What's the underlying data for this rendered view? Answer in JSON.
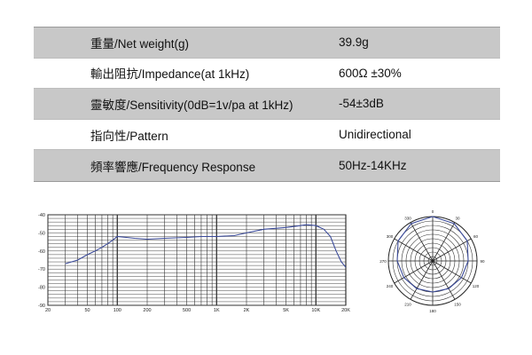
{
  "specs": [
    {
      "label": "重量/Net weight(g)",
      "value": "39.9g"
    },
    {
      "label": "輸出阻抗/Impedance(at 1kHz)",
      "value": "600Ω ±30%"
    },
    {
      "label": "靈敏度/Sensitivity(0dB=1v/pa at 1kHz)",
      "value": "-54±3dB"
    },
    {
      "label": "指向性/Pattern",
      "value": "Unidirectional"
    },
    {
      "label": "頻率響應/Frequency Response",
      "value": "50Hz-14KHz"
    }
  ],
  "chart_data": [
    {
      "type": "line",
      "x_scale": "log",
      "xlim": [
        20,
        20000
      ],
      "ylim": [
        -90,
        -40
      ],
      "x_ticks": [
        20,
        50,
        100,
        200,
        500,
        1000,
        2000,
        5000,
        10000,
        20000
      ],
      "x_tick_labels": [
        "20",
        "50",
        "100",
        "200",
        "500",
        "1K",
        "2K",
        "5K",
        "10K",
        "20K"
      ],
      "y_ticks": [
        -40,
        -50,
        -60,
        -70,
        -80,
        -90
      ],
      "y_tick_labels": [
        "-40",
        "-50",
        "-60",
        "-70",
        "-80",
        "-90"
      ],
      "grid": true,
      "color": "#3a4a9a",
      "series": [
        {
          "x": [
            30,
            40,
            50,
            60,
            70,
            80,
            90,
            100,
            150,
            200,
            300,
            500,
            700,
            1000,
            1500,
            2000,
            3000,
            5000,
            7000,
            8000,
            10000,
            12000,
            14000,
            16000,
            18000,
            20000
          ],
          "y": [
            -67,
            -65,
            -62,
            -60,
            -58,
            -56,
            -54,
            -52,
            -53,
            -53.5,
            -53,
            -52.5,
            -52,
            -52,
            -51.5,
            -50,
            -48,
            -47,
            -46,
            -45.5,
            -46,
            -48,
            -52,
            -60,
            -66,
            -69
          ]
        }
      ]
    },
    {
      "type": "polar",
      "angle_tick_labels": [
        "0",
        "30",
        "60",
        "90",
        "120",
        "150",
        "180",
        "210",
        "240",
        "270",
        "300",
        "330"
      ],
      "color": "#3a4a9a",
      "series": [
        {
          "angle": [
            0,
            30,
            60,
            90,
            120,
            150,
            180,
            210,
            240,
            270,
            300,
            330,
            360
          ],
          "r": [
            1.0,
            0.97,
            0.9,
            0.8,
            0.75,
            0.72,
            0.7,
            0.72,
            0.75,
            0.8,
            0.9,
            0.97,
            1.0
          ]
        }
      ]
    }
  ]
}
